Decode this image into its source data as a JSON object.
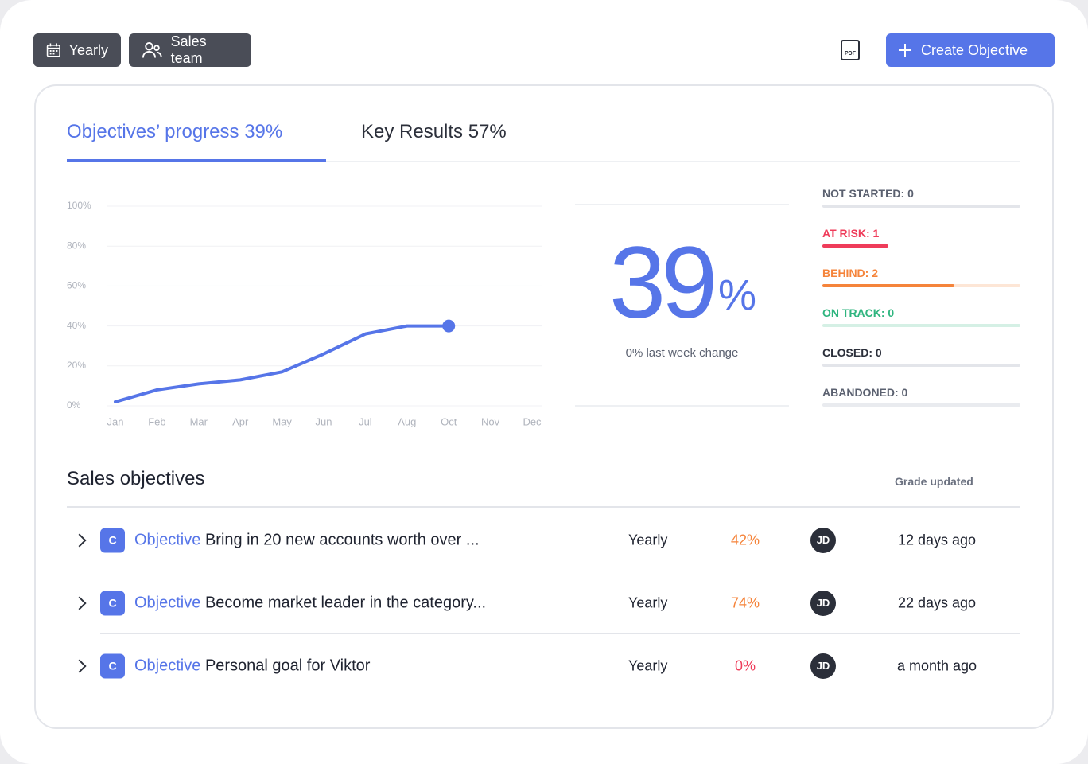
{
  "toolbar": {
    "period": "Yearly",
    "team": "Sales team",
    "pdf": "PDF",
    "create": "Create Objective"
  },
  "tabs": [
    "Objectives’ progress 39%",
    "Key Results 57%"
  ],
  "chart_data": {
    "type": "line",
    "categories": [
      "Jan",
      "Feb",
      "Mar",
      "Apr",
      "May",
      "Jun",
      "Jul",
      "Aug",
      "Oct",
      "Nov",
      "Dec"
    ],
    "values": [
      2,
      8,
      11,
      13,
      17,
      26,
      36,
      40,
      40,
      null,
      null
    ],
    "color": "#5675e8",
    "ylim": [
      0,
      100
    ],
    "yticks": [
      {
        "value": 0,
        "label": "0%"
      },
      {
        "value": 20,
        "label": "20%"
      },
      {
        "value": 40,
        "label": "40%"
      },
      {
        "value": 60,
        "label": "60%"
      },
      {
        "value": 80,
        "label": "80%"
      },
      {
        "value": 100,
        "label": "100%"
      }
    ],
    "grid": true
  },
  "summary": {
    "value": "39",
    "unit": "%",
    "caption": "0% last week change"
  },
  "statuses": [
    {
      "label": "NOT STARTED: 0",
      "count": 0,
      "color": "#5b6170",
      "bar": "#5b6170",
      "track": "#e3e5ea"
    },
    {
      "label": "AT RISK: 1",
      "count": 1,
      "color": "#ef3c5a",
      "bar": "#ef3c5a",
      "track": "#ffffff"
    },
    {
      "label": "BEHIND: 2",
      "count": 2,
      "color": "#f5843b",
      "bar": "#f5843b",
      "track": "#fde6d6"
    },
    {
      "label": "ON TRACK: 0",
      "count": 0,
      "color": "#2fb57f",
      "bar": "#2fb57f",
      "track": "#d5f0e5"
    },
    {
      "label": "CLOSED: 0",
      "count": 0,
      "color": "#2b2f3a",
      "bar": "#2b2f3a",
      "track": "#e3e5ea"
    },
    {
      "label": "ABANDONED: 0",
      "count": 0,
      "color": "#5b6170",
      "bar": "#5b6170",
      "track": "#e9ebef"
    }
  ],
  "table": {
    "title": "Sales objectives",
    "grade_header": "Grade updated",
    "rows": [
      {
        "badge": "C",
        "kind": "Objective",
        "title": "Bring in 20 new accounts worth over ...",
        "period": "Yearly",
        "progress": "42%",
        "progress_color": "#f5843b",
        "owner": "JD",
        "updated": "12 days ago"
      },
      {
        "badge": "C",
        "kind": "Objective",
        "title": "Become market leader in the category...",
        "period": "Yearly",
        "progress": "74%",
        "progress_color": "#f5843b",
        "owner": "JD",
        "updated": "22 days ago"
      },
      {
        "badge": "C",
        "kind": "Objective",
        "title": "Personal goal for Viktor",
        "period": "Yearly",
        "progress": "0%",
        "progress_color": "#ef3c5a",
        "owner": "JD",
        "updated": "a month ago"
      }
    ]
  }
}
